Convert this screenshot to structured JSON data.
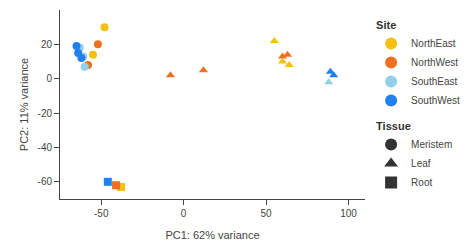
{
  "chart_data": {
    "type": "scatter",
    "x_label": "PC1: 62% variance",
    "y_label": "PC2: 11% variance",
    "xlim": [
      -75,
      110
    ],
    "ylim": [
      -70,
      40
    ],
    "xticks": [
      -50,
      0,
      50,
      100
    ],
    "yticks": [
      -60,
      -40,
      -20,
      0,
      20
    ],
    "grid": false,
    "legend": "right",
    "site_legend_title": "Site",
    "tissue_legend_title": "Tissue",
    "sites": [
      {
        "name": "NorthEast",
        "color": "#F5C010"
      },
      {
        "name": "NorthWest",
        "color": "#F07020"
      },
      {
        "name": "SouthEast",
        "color": "#90D0E8"
      },
      {
        "name": "SouthWest",
        "color": "#2080F0"
      }
    ],
    "tissues": [
      {
        "name": "Meristem",
        "marker": "circle",
        "color": "#333333"
      },
      {
        "name": "Leaf",
        "marker": "triangle-up",
        "color": "#333333"
      },
      {
        "name": "Root",
        "marker": "square",
        "color": "#333333"
      }
    ],
    "points": [
      {
        "site": "NorthEast",
        "tissue": "Meristem",
        "x": -55,
        "y": 14
      },
      {
        "site": "NorthEast",
        "tissue": "Meristem",
        "x": -48,
        "y": 30
      },
      {
        "site": "NorthWest",
        "tissue": "Meristem",
        "x": -58,
        "y": 8
      },
      {
        "site": "NorthWest",
        "tissue": "Meristem",
        "x": -52,
        "y": 20
      },
      {
        "site": "SouthEast",
        "tissue": "Meristem",
        "x": -63,
        "y": 18
      },
      {
        "site": "SouthEast",
        "tissue": "Meristem",
        "x": -61,
        "y": 13
      },
      {
        "site": "SouthEast",
        "tissue": "Meristem",
        "x": -60,
        "y": 7
      },
      {
        "site": "SouthWest",
        "tissue": "Meristem",
        "x": -65,
        "y": 19
      },
      {
        "site": "SouthWest",
        "tissue": "Meristem",
        "x": -64,
        "y": 15
      },
      {
        "site": "SouthWest",
        "tissue": "Meristem",
        "x": -62,
        "y": 12
      },
      {
        "site": "NorthEast",
        "tissue": "Leaf",
        "x": 55,
        "y": 22
      },
      {
        "site": "NorthEast",
        "tissue": "Leaf",
        "x": 60,
        "y": 10
      },
      {
        "site": "NorthEast",
        "tissue": "Leaf",
        "x": 64,
        "y": 8
      },
      {
        "site": "NorthWest",
        "tissue": "Leaf",
        "x": -8,
        "y": 2
      },
      {
        "site": "NorthWest",
        "tissue": "Leaf",
        "x": 12,
        "y": 5
      },
      {
        "site": "NorthWest",
        "tissue": "Leaf",
        "x": 60,
        "y": 13
      },
      {
        "site": "NorthWest",
        "tissue": "Leaf",
        "x": 63,
        "y": 14
      },
      {
        "site": "SouthWest",
        "tissue": "Leaf",
        "x": 89,
        "y": 4
      },
      {
        "site": "SouthWest",
        "tissue": "Leaf",
        "x": 91,
        "y": 2
      },
      {
        "site": "SouthEast",
        "tissue": "Leaf",
        "x": 88,
        "y": -2
      },
      {
        "site": "NorthEast",
        "tissue": "Root",
        "x": -38,
        "y": -63
      },
      {
        "site": "NorthWest",
        "tissue": "Root",
        "x": -41,
        "y": -62
      },
      {
        "site": "SouthWest",
        "tissue": "Root",
        "x": -46,
        "y": -60
      }
    ]
  }
}
